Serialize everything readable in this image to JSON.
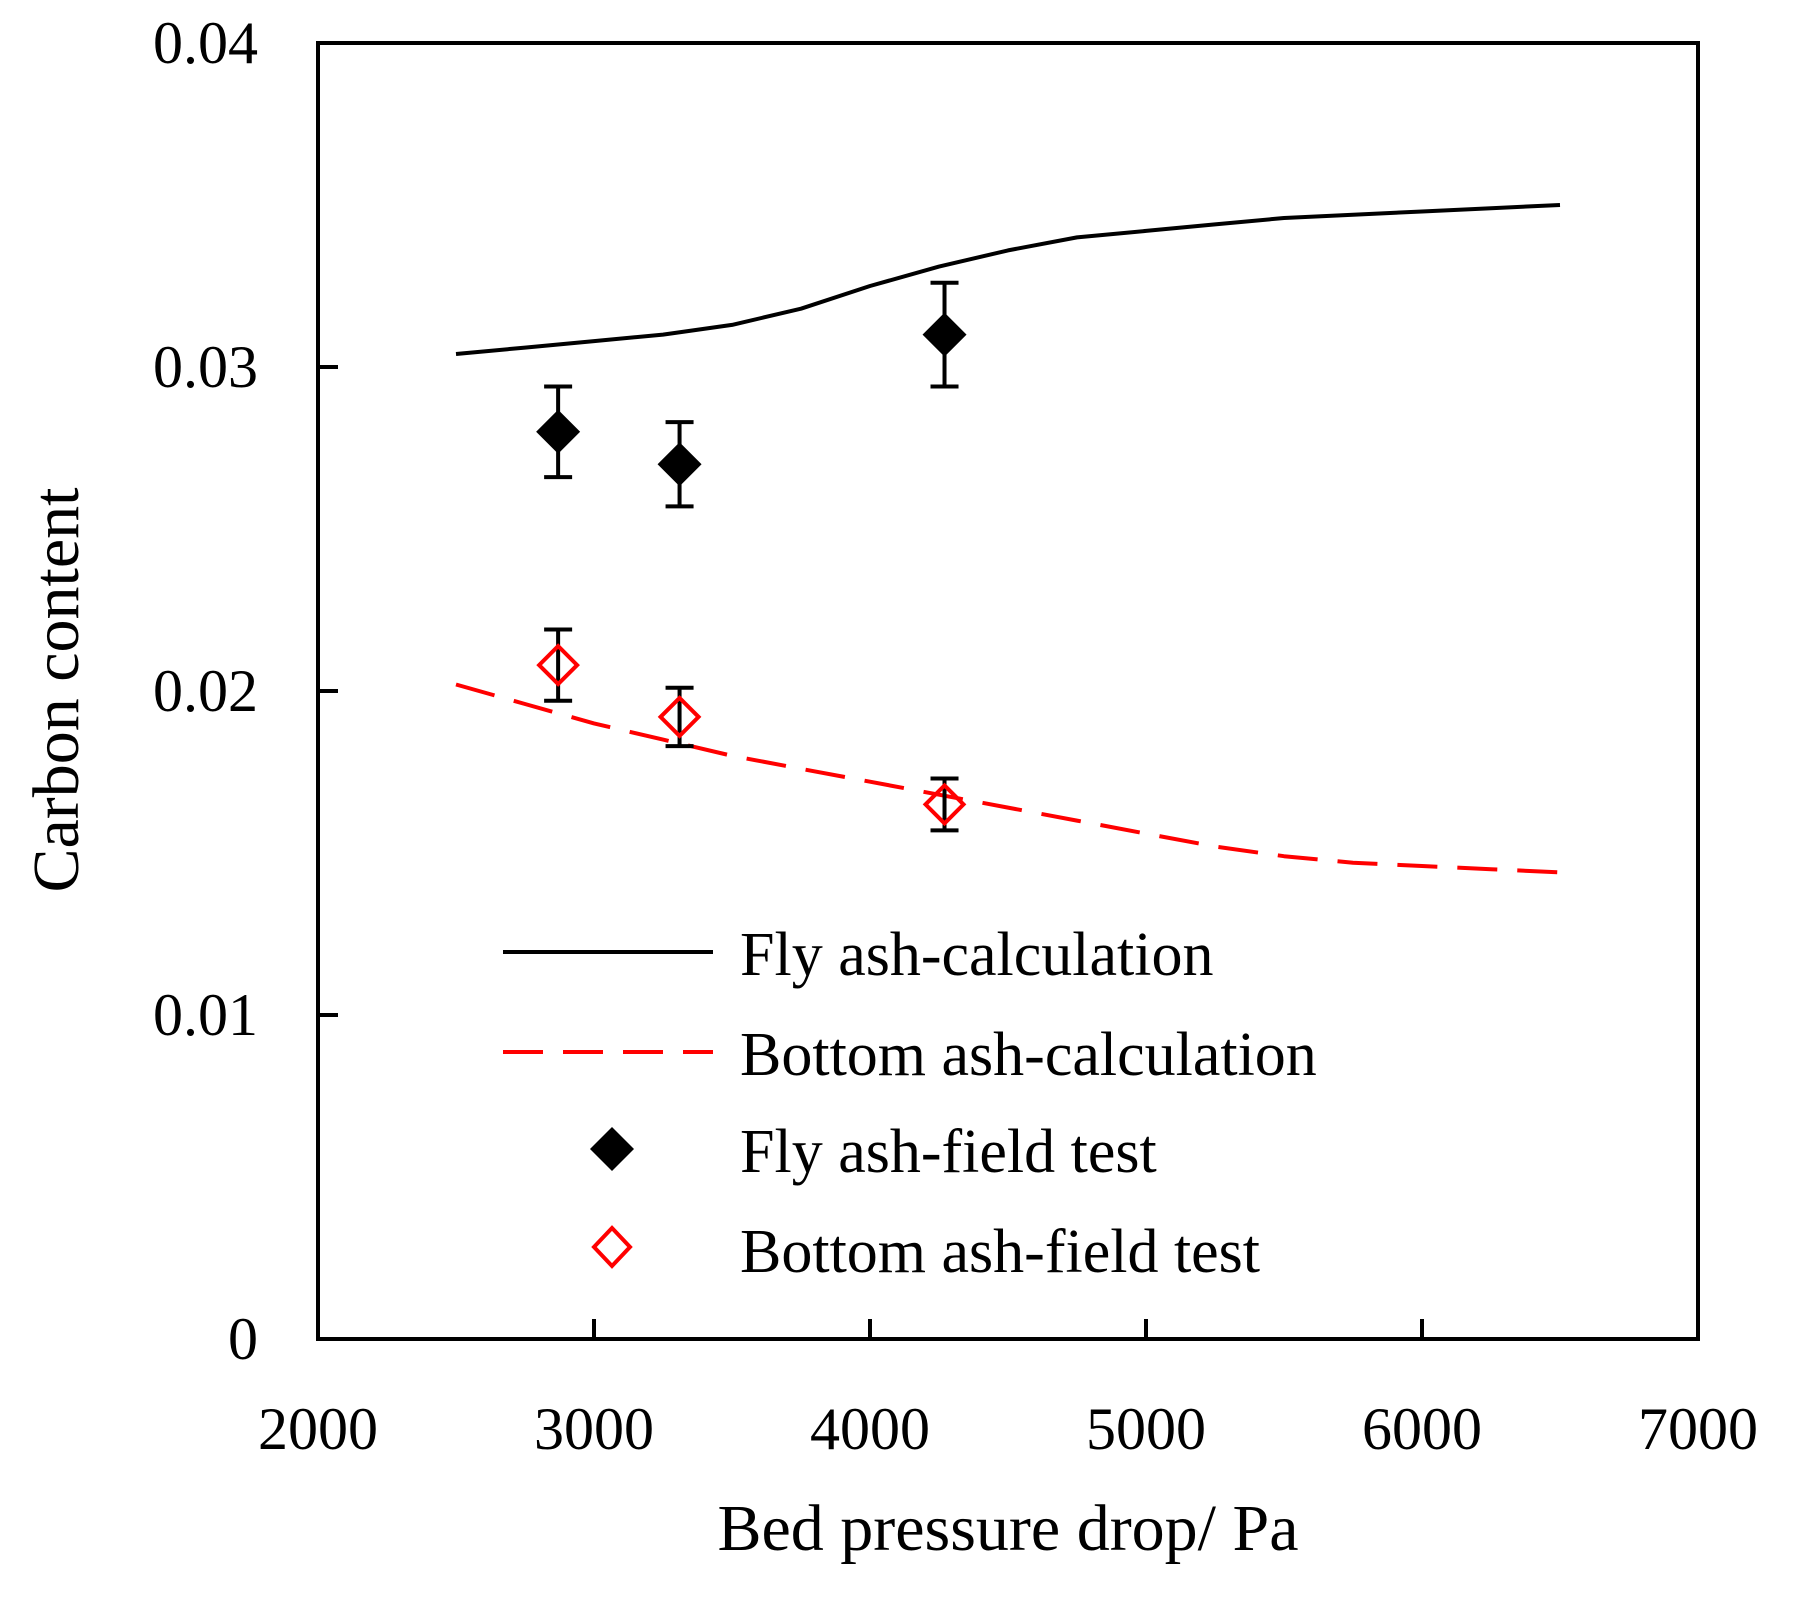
{
  "chart_data": {
    "type": "line",
    "title": "",
    "xlabel": "Bed pressure drop/ Pa",
    "ylabel": "Carbon content",
    "xlim": [
      2000,
      7000
    ],
    "ylim": [
      0,
      0.04
    ],
    "xticks": [
      "2000",
      "3000",
      "4000",
      "5000",
      "6000",
      "7000"
    ],
    "yticks": [
      "0",
      "0.01",
      "0.02",
      "0.03",
      "0.04"
    ],
    "grid": false,
    "legend_position": "bottom-center",
    "series": [
      {
        "name": "Fly ash-calculation",
        "kind": "line",
        "style": "solid",
        "color": "#000000",
        "x": [
          2500,
          2750,
          3000,
          3250,
          3500,
          3750,
          4000,
          4250,
          4500,
          4750,
          5000,
          5250,
          5500,
          5750,
          6000,
          6250,
          6500
        ],
        "y": [
          0.0304,
          0.0306,
          0.0308,
          0.031,
          0.0313,
          0.0318,
          0.0325,
          0.0331,
          0.0336,
          0.034,
          0.0342,
          0.0344,
          0.0346,
          0.0347,
          0.0348,
          0.0349,
          0.035
        ]
      },
      {
        "name": "Bottom ash-calculation",
        "kind": "line",
        "style": "dashed",
        "color": "#ff0000",
        "x": [
          2500,
          2750,
          3000,
          3250,
          3500,
          3750,
          4000,
          4250,
          4500,
          4750,
          5000,
          5250,
          5500,
          5750,
          6000,
          6250,
          6500
        ],
        "y": [
          0.0202,
          0.0196,
          0.019,
          0.0185,
          0.018,
          0.0176,
          0.0172,
          0.0168,
          0.0164,
          0.016,
          0.0156,
          0.0152,
          0.0149,
          0.0147,
          0.0146,
          0.0145,
          0.0144
        ]
      },
      {
        "name": "Fly ash-field test",
        "kind": "scatter",
        "marker": "diamond-filled",
        "color": "#000000",
        "x": [
          2870,
          3310,
          4270
        ],
        "y": [
          0.028,
          0.027,
          0.031
        ],
        "error": [
          0.0014,
          0.0013,
          0.0016
        ]
      },
      {
        "name": "Bottom ash-field test",
        "kind": "scatter",
        "marker": "diamond-open",
        "color": "#ff0000",
        "x": [
          2870,
          3310,
          4270
        ],
        "y": [
          0.0208,
          0.0192,
          0.0165
        ],
        "error": [
          0.0011,
          0.0009,
          0.0008
        ]
      }
    ]
  }
}
